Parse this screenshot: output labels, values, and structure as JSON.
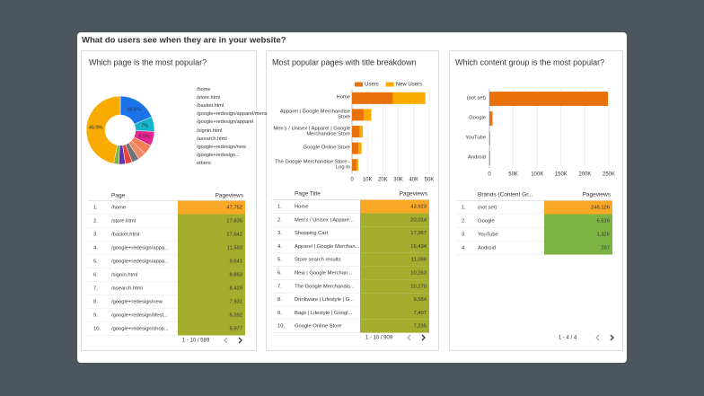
{
  "header": {
    "title": "What do users see when they are in your website?"
  },
  "chart_data": [
    {
      "type": "pie",
      "title": "Which page is the most popular?",
      "categories": [
        "/home",
        "/store.html",
        "/basket.html",
        "/google+redesign/apparel/mens",
        "/google+redesign/apparel",
        "/signin.html",
        "/asearch.html",
        "/google+redesign/new",
        "/google+redesign...",
        "others"
      ],
      "values": [
        18.6,
        7,
        6.9,
        4.6,
        3.8,
        3.5,
        3.3,
        3.1,
        2.4,
        46.9
      ],
      "value_labels": [
        "18.6%",
        "7%",
        "6.9%",
        null,
        null,
        null,
        null,
        null,
        null,
        "46.9%"
      ],
      "colors": [
        "#1a73e8",
        "#12b5cb",
        "#e52592",
        "#f27f56",
        "#ef8a62",
        "#6e7378",
        "#e8453c",
        "#5f35ae",
        "#7cb342",
        "#f9ab00"
      ],
      "donut": true
    },
    {
      "type": "hbar",
      "title": "Most popular pages with title breakdown",
      "categories": [
        "Home",
        "Apparel | Google Merchandise Store",
        "Men's / Unisex | Apparel | Google Merchandise Store",
        "Google Online Store",
        "The Google Merchandise Store - Log In"
      ],
      "series": [
        {
          "name": "Users",
          "color": "#e8710a",
          "values": [
            26500,
            7500,
            5000,
            4200,
            3000
          ]
        },
        {
          "name": "New Users",
          "color": "#f9ab00",
          "values": [
            21000,
            5000,
            2000,
            2000,
            1000
          ]
        }
      ],
      "stacked": true,
      "xlim": [
        0,
        50000
      ],
      "xticks": [
        0,
        {
          "value": 10000,
          "label": "10K"
        },
        {
          "value": 20000,
          "label": "20K"
        },
        {
          "value": 30000,
          "label": "30K"
        },
        {
          "value": 40000,
          "label": "40K"
        },
        {
          "value": 50000,
          "label": "50K"
        }
      ],
      "grid": true
    },
    {
      "type": "hbar",
      "title": "Which content group is the most popular?",
      "categories": [
        "(not set)",
        "Google",
        "YouTube",
        "Android"
      ],
      "values": [
        248126,
        6516,
        1326,
        297
      ],
      "color": "#e8710a",
      "xlim": [
        0,
        250000
      ],
      "xticks": [
        0,
        {
          "value": 50000,
          "label": "50K"
        },
        {
          "value": 100000,
          "label": "100K"
        },
        {
          "value": 150000,
          "label": "150K"
        },
        {
          "value": 200000,
          "label": "200K"
        },
        {
          "value": 250000,
          "label": "250K"
        }
      ],
      "grid": true
    }
  ],
  "tables": [
    {
      "columns": [
        "Page",
        "Pageviews"
      ],
      "top_color": "#f9a825",
      "cell_color": "#a4ad2e",
      "pager": "1 - 10 / 589",
      "rows": [
        [
          "1.",
          "/home",
          "47,752"
        ],
        [
          "2.",
          "/store.html",
          "17,835"
        ],
        [
          "3.",
          "/basket.html",
          "17,642"
        ],
        [
          "4.",
          "/google+redesign/appa...",
          "11,583"
        ],
        [
          "5.",
          "/google+redesign/appa...",
          "9,641"
        ],
        [
          "6.",
          "/signin.html",
          "8,863"
        ],
        [
          "7.",
          "/asearch.html",
          "8,429"
        ],
        [
          "8.",
          "/google+redesign/new",
          "7,931"
        ],
        [
          "9.",
          "/google+redesign/lifest...",
          "6,392"
        ],
        [
          "10.",
          "/google+redesign/shop...",
          "5,977"
        ]
      ]
    },
    {
      "columns": [
        "Page Title",
        "Pageviews"
      ],
      "top_color": "#f9a825",
      "cell_color": "#a4ad2e",
      "pager": "1 - 10 / 909",
      "rows": [
        [
          "1.",
          "Home",
          "43,923"
        ],
        [
          "2.",
          "Men's / Unisex | Appare...",
          "20,014"
        ],
        [
          "3.",
          "Shopping Cart",
          "17,367"
        ],
        [
          "4.",
          "Apparel | Google Merchan...",
          "16,434"
        ],
        [
          "5.",
          "Store search results",
          "11,096"
        ],
        [
          "6.",
          "New | Google Merchan...",
          "10,263"
        ],
        [
          "7.",
          "The Google Merchandis...",
          "10,170"
        ],
        [
          "8.",
          "Drinkware | Lifestyle | G...",
          "9,554"
        ],
        [
          "9.",
          "Bags | Lifestyle | Googl...",
          "7,407"
        ],
        [
          "10.",
          "Google Online Store",
          "7,235"
        ]
      ]
    },
    {
      "columns": [
        "Brands (Content Gr...",
        "Pageviews"
      ],
      "top_color": "#f9a825",
      "cell_color": "#7cb342",
      "pager": "1 - 4 / 4",
      "rows": [
        [
          "1.",
          "(not set)",
          "248,126"
        ],
        [
          "2.",
          "Google",
          "6,516"
        ],
        [
          "3.",
          "YouTube",
          "1,326"
        ],
        [
          "4.",
          "Android",
          "297"
        ]
      ]
    }
  ]
}
